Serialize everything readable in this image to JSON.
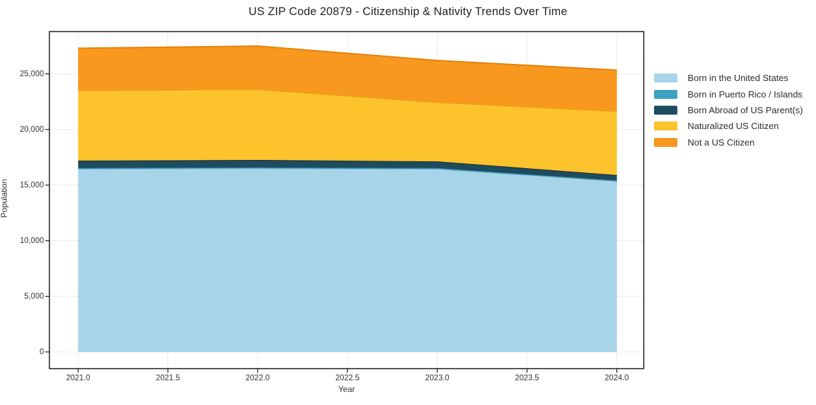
{
  "title": "US ZIP Code 20879 - Citizenship & Nativity Trends Over Time",
  "chart_data": {
    "type": "area",
    "stacked": true,
    "title": "US ZIP Code 20879 - Citizenship & Nativity Trends Over Time",
    "xlabel": "Year",
    "ylabel": "Population",
    "x": [
      2021,
      2022,
      2023,
      2024
    ],
    "series": [
      {
        "name": "Born in the United States",
        "color": "#a7d4e8",
        "edge_color": "#86bdd9",
        "values": [
          16450,
          16500,
          16450,
          15350
        ]
      },
      {
        "name": "Born in Puerto Rico / Islands",
        "color": "#3d9fc1",
        "edge_color": "#2d87a6",
        "values": [
          90,
          90,
          80,
          70
        ]
      },
      {
        "name": "Born Abroad of US Parent(s)",
        "color": "#1f4b5e",
        "edge_color": "#122d39",
        "values": [
          660,
          670,
          600,
          480
        ]
      },
      {
        "name": "Naturalized US Citizen",
        "color": "#fdc32d",
        "edge_color": "#e6a413",
        "values": [
          6300,
          6350,
          5310,
          5740
        ]
      },
      {
        "name": "Not a US Citizen",
        "color": "#f8981f",
        "edge_color": "#e2820a",
        "values": [
          3800,
          3890,
          3760,
          3700
        ]
      }
    ],
    "x_ticks": [
      2021.0,
      2021.5,
      2022.0,
      2022.5,
      2023.0,
      2023.5,
      2024.0
    ],
    "y_ticks": [
      0,
      5000,
      10000,
      15000,
      20000,
      25000
    ],
    "x_range": [
      2020.84,
      2024.15
    ],
    "y_range": [
      -1500,
      28800
    ],
    "grid": true,
    "legend_position": "right",
    "colors": {
      "grid": "#ebebeb",
      "axis_border": "#1a1a1a",
      "tick": "#2a2a2a",
      "background": "#ffffff"
    }
  }
}
